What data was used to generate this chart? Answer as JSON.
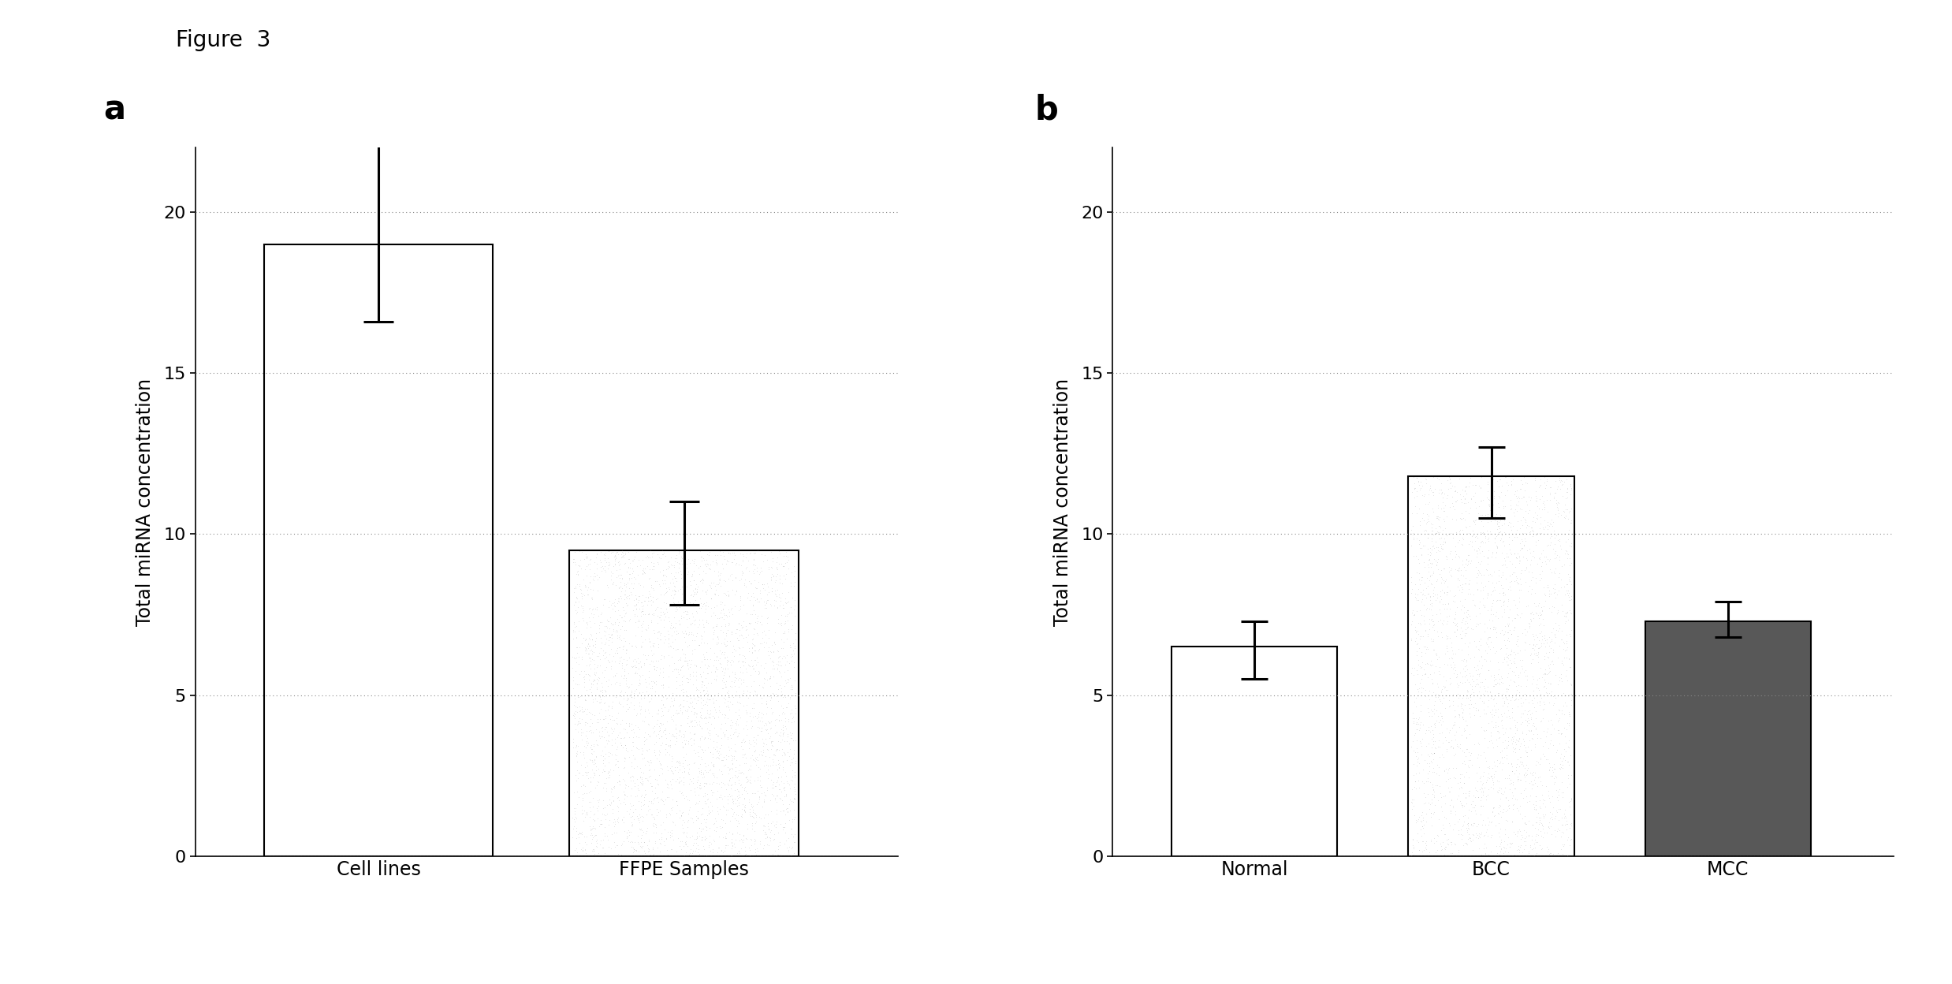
{
  "panel_a": {
    "categories": [
      "Cell lines",
      "FFPE Samples"
    ],
    "values": [
      19.0,
      9.5
    ],
    "errors_lower": [
      2.4,
      1.7
    ],
    "errors_upper": [
      3.3,
      1.5
    ],
    "bar_colors": [
      "#ffffff",
      "#d0d0d0"
    ],
    "bar_edgecolors": [
      "#000000",
      "#000000"
    ],
    "bar_stipple": [
      false,
      true
    ],
    "ylabel": "Total miRNA concentration",
    "ylim": [
      0,
      22
    ],
    "yticks": [
      0,
      5,
      10,
      15,
      20
    ],
    "label": "a"
  },
  "panel_b": {
    "categories": [
      "Normal",
      "BCC",
      "MCC"
    ],
    "values": [
      6.5,
      11.8,
      7.3
    ],
    "errors_lower": [
      1.0,
      1.3,
      0.5
    ],
    "errors_upper": [
      0.8,
      0.9,
      0.6
    ],
    "bar_colors": [
      "#ffffff",
      "#d0d0d0",
      "#585858"
    ],
    "bar_edgecolors": [
      "#000000",
      "#000000",
      "#000000"
    ],
    "bar_stipple": [
      false,
      true,
      false
    ],
    "ylabel": "Total miRNA concentration",
    "ylim": [
      0,
      22
    ],
    "yticks": [
      0,
      5,
      10,
      15,
      20
    ],
    "label": "b"
  },
  "figure_title": "Figure  3",
  "background_color": "#ffffff",
  "grid_color": "#888888",
  "grid_linestyle": "dotted"
}
